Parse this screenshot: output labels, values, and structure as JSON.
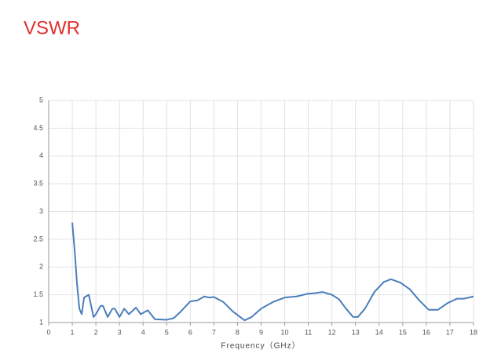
{
  "chart_data": {
    "type": "line",
    "title": "VSWR",
    "x_label": "Frequency（GHz）",
    "series": [
      {
        "color": "#4a7ebb",
        "x": [
          1,
          1.1,
          1.2,
          1.3,
          1.4,
          1.5,
          1.7,
          1.8,
          1.9,
          2.0,
          2.2,
          2.3,
          2.5,
          2.7,
          2.8,
          3.0,
          3.2,
          3.4,
          3.7,
          3.9,
          4.2,
          4.5,
          5,
          5.3,
          5.6,
          6,
          6.3,
          6.6,
          6.8,
          7,
          7.4,
          7.8,
          8.3,
          8.6,
          9,
          9.5,
          10,
          10.5,
          11,
          11.3,
          11.6,
          12,
          12.3,
          12.6,
          12.9,
          13.1,
          13.4,
          13.8,
          14.2,
          14.5,
          14.9,
          15.3,
          15.7,
          16.1,
          16.5,
          16.9,
          17.3,
          17.6,
          18
        ],
        "values": [
          2.8,
          2.3,
          1.7,
          1.25,
          1.15,
          1.45,
          1.5,
          1.3,
          1.1,
          1.15,
          1.3,
          1.3,
          1.1,
          1.25,
          1.25,
          1.1,
          1.25,
          1.15,
          1.27,
          1.15,
          1.22,
          1.06,
          1.05,
          1.08,
          1.2,
          1.38,
          1.4,
          1.47,
          1.45,
          1.46,
          1.37,
          1.2,
          1.04,
          1.1,
          1.25,
          1.37,
          1.45,
          1.47,
          1.52,
          1.53,
          1.55,
          1.5,
          1.42,
          1.25,
          1.1,
          1.1,
          1.25,
          1.55,
          1.73,
          1.78,
          1.72,
          1.6,
          1.4,
          1.23,
          1.23,
          1.35,
          1.43,
          1.43,
          1.47
        ]
      }
    ],
    "xlim": [
      0,
      18
    ],
    "xticks": [
      0,
      1,
      2,
      3,
      4,
      5,
      6,
      7,
      8,
      9,
      10,
      11,
      12,
      13,
      14,
      15,
      16,
      17,
      18
    ],
    "ylim": [
      1,
      5
    ],
    "yticks": [
      1,
      1.5,
      2,
      2.5,
      3,
      3.5,
      4,
      4.5,
      5
    ],
    "grid": true
  }
}
